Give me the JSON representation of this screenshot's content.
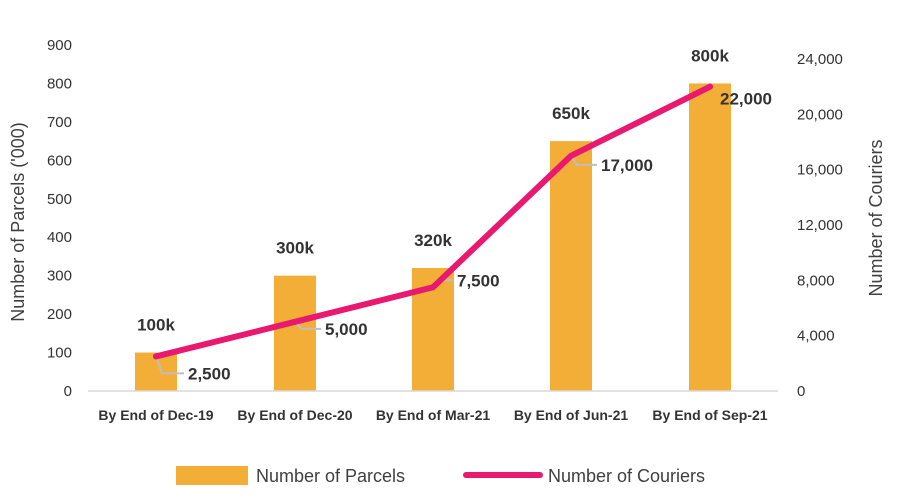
{
  "chart_data": {
    "type": "bar",
    "title": "",
    "categories": [
      "By End of Dec-19",
      "By End of Dec-20",
      "By End of Mar-21",
      "By End of Jun-21",
      "By End of Sep-21"
    ],
    "series": [
      {
        "name": "Number of Parcels",
        "type": "bar",
        "axis": "left",
        "values": [
          100,
          300,
          320,
          650,
          800
        ],
        "labels": [
          "100k",
          "300k",
          "320k",
          "650k",
          "800k"
        ],
        "color": "#F2AE36"
      },
      {
        "name": "Number of Couriers",
        "type": "line",
        "axis": "right",
        "values": [
          2500,
          5000,
          7500,
          17000,
          22000
        ],
        "labels": [
          "2,500",
          "5,000",
          "7,500",
          "17,000",
          "22,000"
        ],
        "color": "#E8196F"
      }
    ],
    "ylabel_left": "Number of Parcels ('000)",
    "ylabel_right": "Number of Couriers",
    "ylim_left": [
      0,
      900
    ],
    "yticks_left": [
      "0",
      "100",
      "200",
      "300",
      "400",
      "500",
      "600",
      "700",
      "800",
      "900"
    ],
    "ylim_right": [
      0,
      24000
    ],
    "yticks_right": [
      "0",
      "4,000",
      "8,000",
      "12,000",
      "16,000",
      "20,000",
      "24,000"
    ],
    "grid": false,
    "legend_position": "bottom-center",
    "leader_line_color": "#BFBFBF",
    "axis_line_color": "#D9D9D9"
  },
  "legend": {
    "parcels_label": "Number of Parcels",
    "couriers_label": "Number of Couriers"
  }
}
